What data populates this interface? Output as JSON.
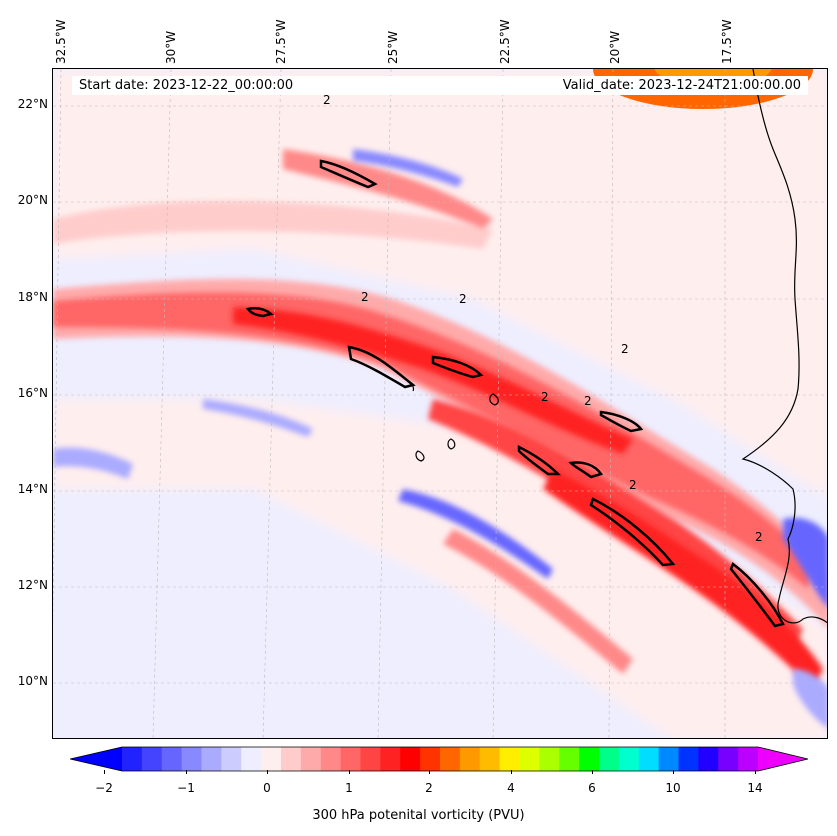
{
  "map": {
    "longitude_labels": [
      "32.5°W",
      "30°W",
      "27.5°W",
      "25°W",
      "22.5°W",
      "20°W",
      "17.5°W"
    ],
    "latitude_labels": [
      "22°N",
      "20°N",
      "18°N",
      "16°N",
      "14°N",
      "12°N",
      "10°N"
    ],
    "start_date": "Start date: 2023-12-22_00:00:00",
    "valid_date": "Valid_date: 2023-12-24T21:00:00.00",
    "contour_label": "2"
  },
  "colorbar": {
    "title": "300 hPa potenital vorticity (PVU)",
    "tick_labels": [
      "−2",
      "−1",
      "0",
      "1",
      "2",
      "4",
      "6",
      "10",
      "14"
    ],
    "colors": [
      "#0000ff",
      "#2222ff",
      "#4444ff",
      "#6666ff",
      "#8888ff",
      "#aaaaff",
      "#ccccff",
      "#eeeeff",
      "#ffeeee",
      "#ffcccc",
      "#ffaaaa",
      "#ff8888",
      "#ff6666",
      "#ff4444",
      "#ff2222",
      "#ff0000",
      "#ff3300",
      "#ff6600",
      "#ff9900",
      "#ffbb00",
      "#ffee00",
      "#ddff00",
      "#aaff00",
      "#66ff00",
      "#00ff00",
      "#00ff88",
      "#00ffcc",
      "#00ddff",
      "#0088ff",
      "#0033ff",
      "#2200ff",
      "#7700ff",
      "#bb00ff",
      "#ee00ff"
    ]
  }
}
